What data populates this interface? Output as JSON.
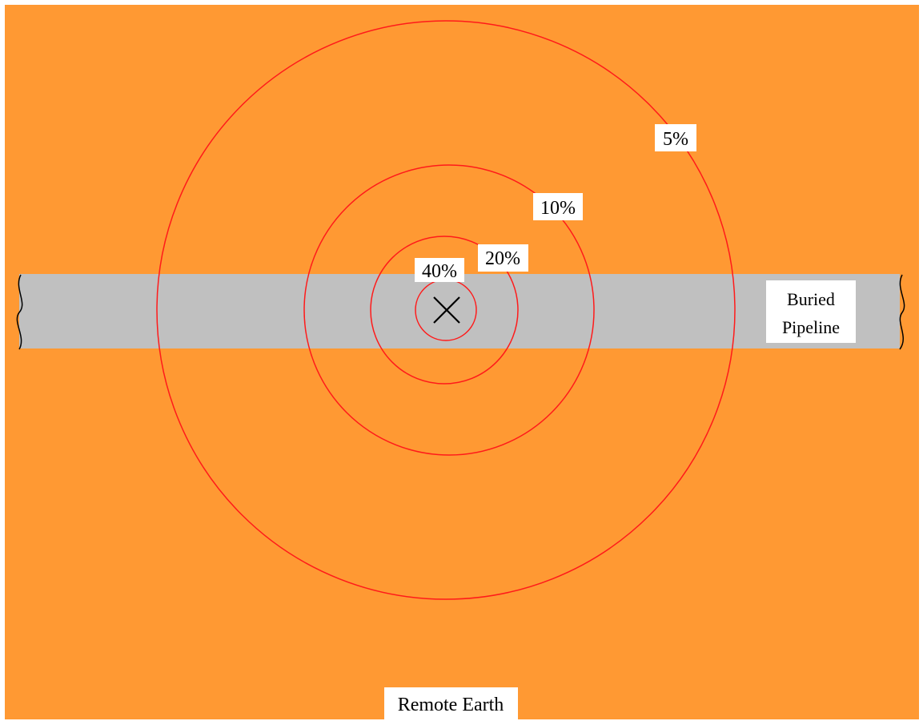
{
  "colors": {
    "earth": "#ff9933",
    "pipeline": "#c0c0c0",
    "contour": "#ff1a1a",
    "label_background": "#ffffff",
    "text": "#000000",
    "marker": "#000000"
  },
  "contours": [
    {
      "label": "5%"
    },
    {
      "label": "10%"
    },
    {
      "label": "20%"
    },
    {
      "label": "40%"
    }
  ],
  "pipeline": {
    "label_line1": "Buried",
    "label_line2": "Pipeline"
  },
  "remote_earth_label": "Remote Earth",
  "electrode_marker": "x-marker-icon"
}
